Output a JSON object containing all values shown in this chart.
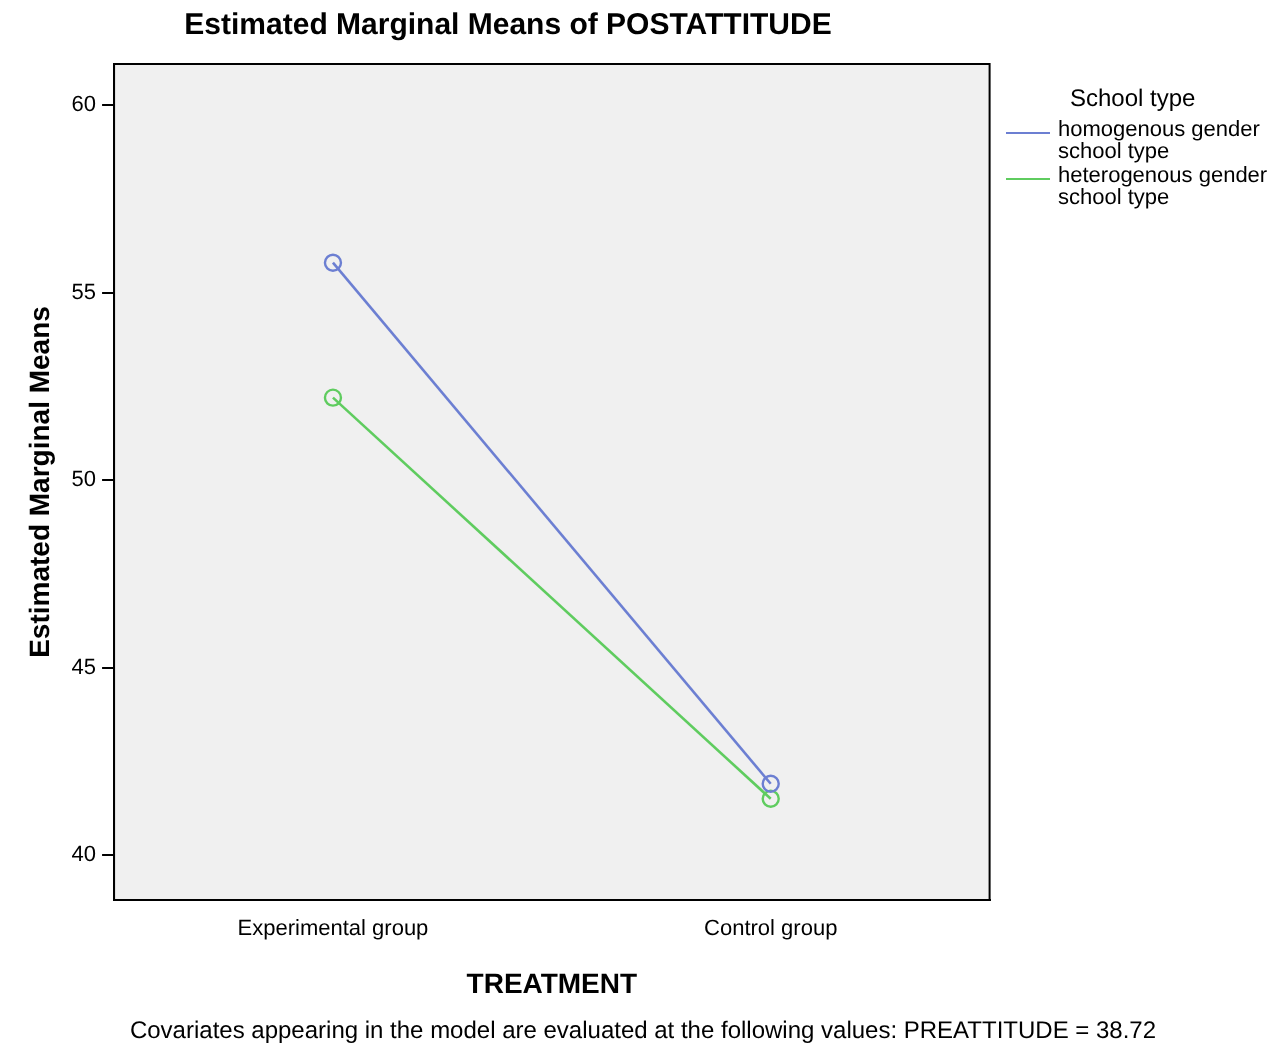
{
  "chart_data": {
    "type": "line",
    "title": "Estimated Marginal Means of POSTATTITUDE",
    "xlabel": "TREATMENT",
    "ylabel": "Estimated Marginal Means",
    "legend_title": "School type",
    "legend": "right",
    "marker": "circle",
    "categories": [
      "Experimental group",
      "Control group"
    ],
    "series": [
      {
        "name": "homogenous gender school type",
        "color": "#6c7fd2",
        "values": [
          55.8,
          41.9
        ]
      },
      {
        "name": "heterogenous gender school type",
        "color": "#5fcc5f",
        "values": [
          52.2,
          41.5
        ]
      }
    ],
    "ylim": [
      38.8,
      61.1
    ],
    "yticks": [
      40,
      45,
      50,
      55,
      60
    ],
    "annotations": [
      "Covariates appearing in the model are evaluated at the following values: PREATTITUDE = 38.72"
    ]
  }
}
